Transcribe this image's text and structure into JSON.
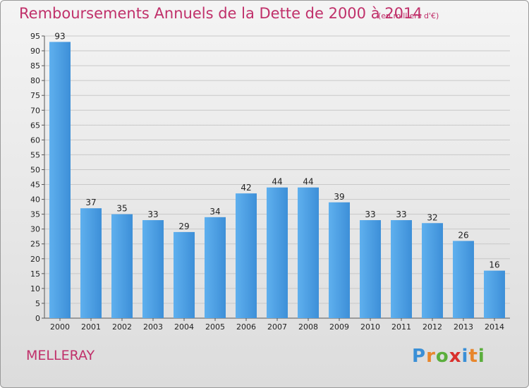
{
  "title": "Remboursements Annuels de la Dette de 2000 à 2014",
  "subtitle": "(en milliers d'€)",
  "commune": "MELLERAY",
  "brand": {
    "letters": [
      "P",
      "r",
      "o",
      "x",
      "i",
      "t",
      "i"
    ],
    "colors": [
      "#3a8fd6",
      "#e8862c",
      "#5aae3c",
      "#d9302c",
      "#3a8fd6",
      "#e8862c",
      "#5aae3c"
    ]
  },
  "colors": {
    "bar": "#3d8fd8",
    "bar_light": "#5fb0ee",
    "text": "#222222",
    "accent": "#c0306a",
    "grid": "#c8c8c8"
  },
  "chart_data": {
    "type": "bar",
    "categories": [
      "2000",
      "2001",
      "2002",
      "2003",
      "2004",
      "2005",
      "2006",
      "2007",
      "2008",
      "2009",
      "2010",
      "2011",
      "2012",
      "2013",
      "2014"
    ],
    "values": [
      93,
      37,
      35,
      33,
      29,
      34,
      42,
      44,
      44,
      39,
      33,
      33,
      32,
      26,
      16
    ],
    "title": "Remboursements Annuels de la Dette de 2000 à 2014",
    "xlabel": "",
    "ylabel": "",
    "ylim": [
      0,
      95
    ],
    "yticks": [
      0,
      5,
      10,
      15,
      20,
      25,
      30,
      35,
      40,
      45,
      50,
      55,
      60,
      65,
      70,
      75,
      80,
      85,
      90,
      95
    ],
    "grid": true,
    "data_labels": true
  }
}
